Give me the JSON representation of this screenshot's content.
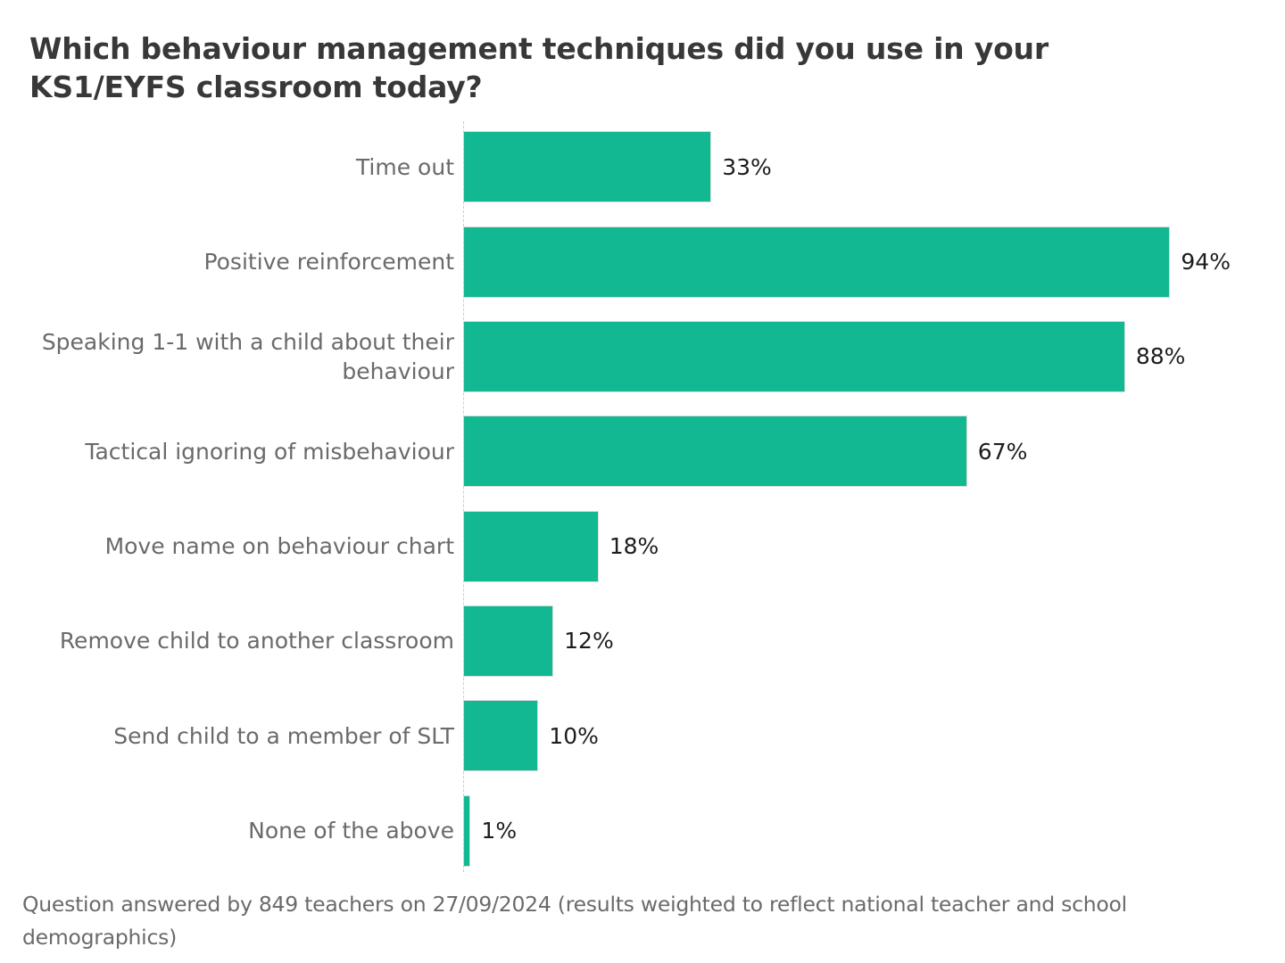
{
  "chart_data": {
    "type": "bar",
    "orientation": "horizontal",
    "title": "Which behaviour management techniques did you use in your KS1/EYFS classroom today?",
    "categories": [
      "Time out",
      "Positive reinforcement",
      "Speaking 1-1 with a child about their behaviour",
      "Tactical ignoring of misbehaviour",
      "Move name on behaviour chart",
      "Remove child to another classroom",
      "Send child to a member of SLT",
      "None of the above"
    ],
    "values": [
      33,
      94,
      88,
      67,
      18,
      12,
      10,
      1
    ],
    "value_labels": [
      "33%",
      "94%",
      "88%",
      "67%",
      "18%",
      "12%",
      "10%",
      "1%"
    ],
    "xlim": [
      0,
      100
    ],
    "xlabel": "",
    "ylabel": "",
    "grid": false,
    "legend": false,
    "footnote": "Question answered by 849 teachers on 27/09/2024 (results weighted to reflect national teacher and school demographics)",
    "colors": {
      "bar": "#12b891",
      "bar_border": "#dcdcdc",
      "axis_line": "#cccccc",
      "title": "#383838",
      "category_label": "#6a6a6a",
      "value_label": "#1d1d1d",
      "footnote": "#6a6a6a",
      "background": "#ffffff"
    }
  }
}
